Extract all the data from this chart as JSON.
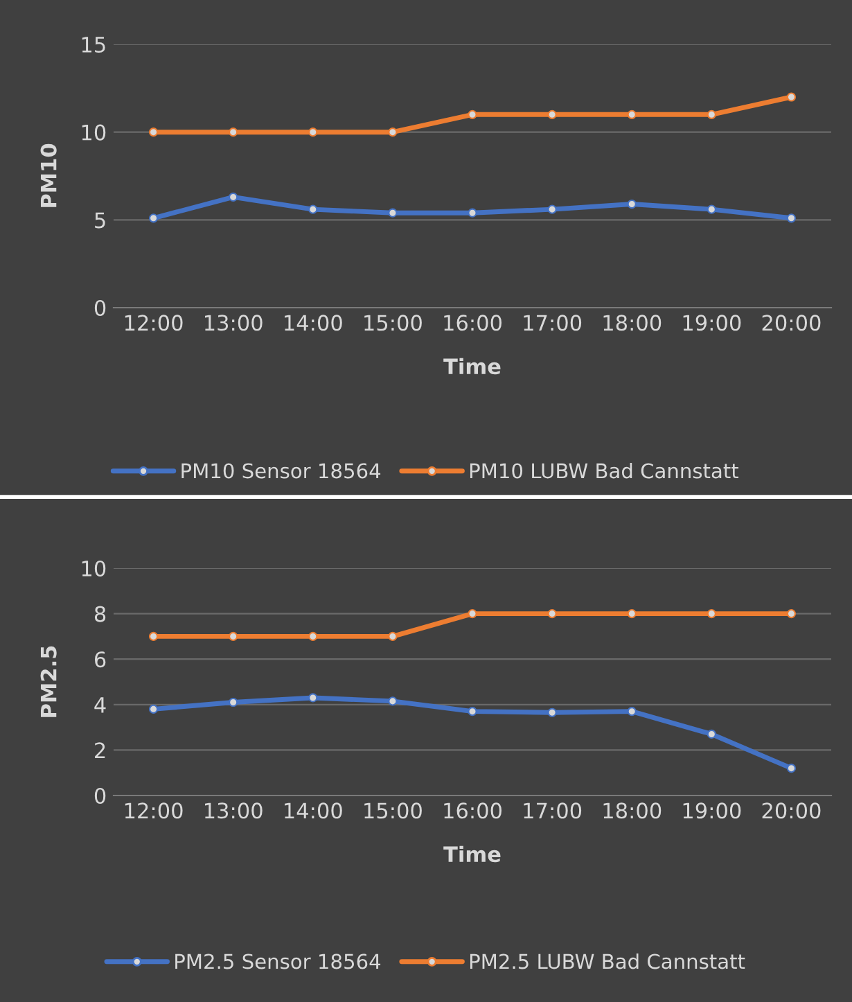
{
  "chart_data": [
    {
      "type": "line",
      "ylabel": "PM10",
      "xlabel": "Time",
      "categories": [
        "12:00",
        "13:00",
        "14:00",
        "15:00",
        "16:00",
        "17:00",
        "18:00",
        "19:00",
        "20:00"
      ],
      "series": [
        {
          "name": "PM10 Sensor 18564",
          "color": "#4472c4",
          "values": [
            5.1,
            6.3,
            5.6,
            5.4,
            5.4,
            5.6,
            5.9,
            5.6,
            5.1
          ]
        },
        {
          "name": "PM10 LUBW Bad Cannstatt",
          "color": "#ed7d31",
          "values": [
            10,
            10,
            10,
            10,
            11,
            11,
            11,
            11,
            12
          ]
        }
      ],
      "ylim": [
        0,
        15
      ],
      "yticks": [
        0,
        5,
        10,
        15
      ],
      "grid": "y",
      "legend": "bottom",
      "marker": "circle",
      "line_style": "solid"
    },
    {
      "type": "line",
      "ylabel": "PM2.5",
      "xlabel": "Time",
      "categories": [
        "12:00",
        "13:00",
        "14:00",
        "15:00",
        "16:00",
        "17:00",
        "18:00",
        "19:00",
        "20:00"
      ],
      "series": [
        {
          "name": "PM2.5 Sensor 18564",
          "color": "#4472c4",
          "values": [
            3.8,
            4.1,
            4.3,
            4.15,
            3.7,
            3.65,
            3.7,
            2.7,
            1.2
          ]
        },
        {
          "name": "PM2.5 LUBW Bad Cannstatt",
          "color": "#ed7d31",
          "values": [
            7,
            7,
            7,
            7,
            8,
            8,
            8,
            8,
            8
          ]
        }
      ],
      "ylim": [
        0,
        10
      ],
      "yticks": [
        0,
        2,
        4,
        6,
        8,
        10
      ],
      "grid": "y",
      "legend": "bottom",
      "marker": "circle",
      "line_style": "solid"
    }
  ]
}
